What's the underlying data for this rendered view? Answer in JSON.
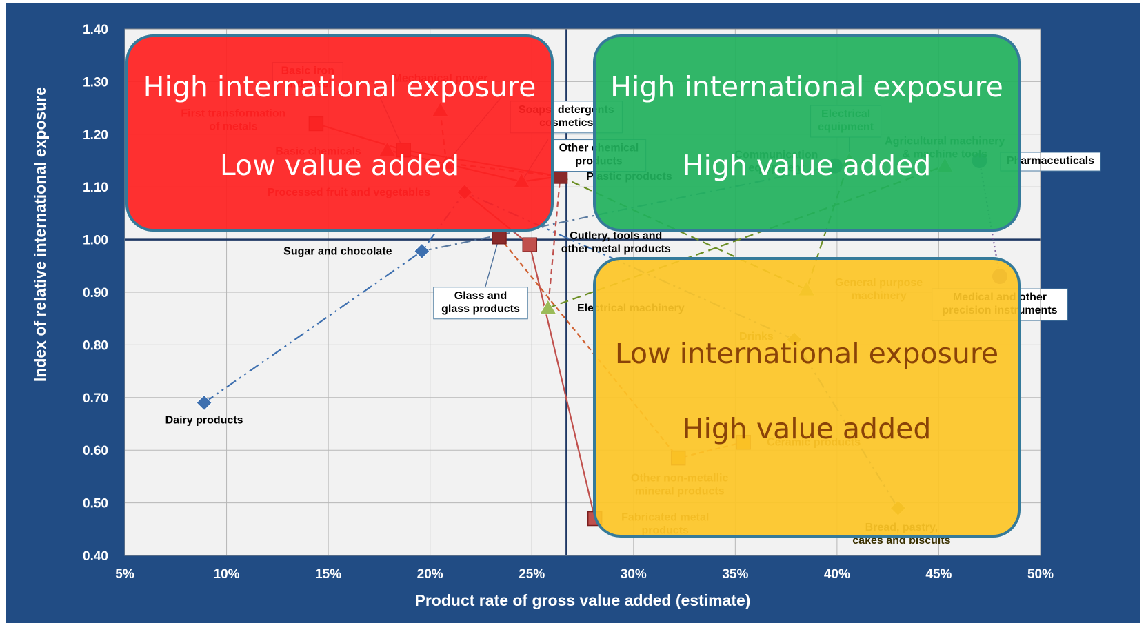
{
  "chart_data": {
    "type": "scatter",
    "xlabel": "Product rate of gross value added (estimate)",
    "ylabel": "Index of relative international exposure",
    "xlim": [
      0.05,
      0.5
    ],
    "ylim": [
      0.4,
      1.4
    ],
    "x_ticks": [
      "5%",
      "10%",
      "15%",
      "20%",
      "25%",
      "30%",
      "35%",
      "40%",
      "45%",
      "50%"
    ],
    "y_ticks": [
      "0.40",
      "0.50",
      "0.60",
      "0.70",
      "0.80",
      "0.90",
      "1.00",
      "1.10",
      "1.20",
      "1.30",
      "1.40"
    ],
    "reference_lines": {
      "x": 0.267,
      "y": 1.0
    },
    "grid": true,
    "points": [
      {
        "label": "Dairy products",
        "x": 0.089,
        "y": 0.69,
        "marker": "diamond",
        "color": "#3d6faf"
      },
      {
        "label": "Sugar and chocolate",
        "x": 0.196,
        "y": 0.978,
        "marker": "diamond",
        "color": "#3d6faf"
      },
      {
        "label": "Processed fruit  and vegetables",
        "x": 0.217,
        "y": 1.09,
        "marker": "diamond",
        "color": "#a6353d"
      },
      {
        "label": "Drinks",
        "x": 0.379,
        "y": 0.81,
        "marker": "diamond",
        "color": "#9a8a2a"
      },
      {
        "label": "Bread, pastry,\ncakes and biscuits",
        "x": 0.43,
        "y": 0.49,
        "marker": "diamond",
        "color": "#9a8a2a"
      },
      {
        "label": "First transformation\nof metals",
        "x": 0.144,
        "y": 1.22,
        "marker": "square",
        "color": "#c0504d"
      },
      {
        "label": "Basic iron\nand steel",
        "x": 0.187,
        "y": 1.17,
        "marker": "square",
        "color": "#c0504d"
      },
      {
        "label": "Glass and\nglass products",
        "x": 0.234,
        "y": 1.005,
        "marker": "square",
        "color": "#8a2a2a"
      },
      {
        "label": "Cutlery, tools and\nother metal products",
        "x": 0.249,
        "y": 0.99,
        "marker": "square",
        "color": "#c0504d"
      },
      {
        "label": "Fabricated metal\nproducts",
        "x": 0.281,
        "y": 0.47,
        "marker": "square",
        "color": "#c0504d"
      },
      {
        "label": "Plastic products",
        "x": 0.264,
        "y": 1.12,
        "marker": "square",
        "color": "#8a2a2a"
      },
      {
        "label": "Other non-metallic\nmineral products",
        "x": 0.322,
        "y": 0.585,
        "marker": "square",
        "color": "#d09020"
      },
      {
        "label": "Ceramic products",
        "x": 0.354,
        "y": 0.615,
        "marker": "square",
        "color": "#d09020"
      },
      {
        "label": "Basic chemicals",
        "x": 0.179,
        "y": 1.17,
        "marker": "triangle",
        "color": "#c0504d"
      },
      {
        "label": "Mechanical power",
        "x": 0.205,
        "y": 1.245,
        "marker": "triangle",
        "color": "#c0504d"
      },
      {
        "label": "Soaps, detergents\ncosmetics",
        "x": 0.208,
        "y": 1.145,
        "marker": "triangle",
        "color": "#c0504d"
      },
      {
        "label": "Other chemical\nproducts",
        "x": 0.245,
        "y": 1.11,
        "marker": "triangle",
        "color": "#c0504d"
      },
      {
        "label": "Electrical machinery",
        "x": 0.258,
        "y": 0.87,
        "marker": "triangle",
        "color": "#9bbb59"
      },
      {
        "label": "General purpose\nmachinery",
        "x": 0.385,
        "y": 0.905,
        "marker": "triangle",
        "color": "#9bbb59"
      },
      {
        "label": "Electrical\nequipment",
        "x": 0.406,
        "y": 1.15,
        "marker": "triangle",
        "color": "#9bbb59"
      },
      {
        "label": "Agricultural machinery\n& machine tools",
        "x": 0.453,
        "y": 1.14,
        "marker": "triangle",
        "color": "#9bbb59"
      },
      {
        "label": "Communication\nequipment",
        "x": 0.399,
        "y": 1.14,
        "marker": "circle",
        "color": "#4a6e9a"
      },
      {
        "label": "Pharmaceuticals",
        "x": 0.47,
        "y": 1.15,
        "marker": "circle",
        "color": "#4a6e9a"
      },
      {
        "label": "Medical and other\nprecision instruments",
        "x": 0.48,
        "y": 0.93,
        "marker": "circle",
        "color": "#8064a2"
      }
    ],
    "quadrants": [
      {
        "id": "top-left",
        "line1": "High international exposure",
        "line2": "Low value added",
        "color": "#ff2020"
      },
      {
        "id": "top-right",
        "line1": "High international exposure",
        "line2": "High value added",
        "color": "#21b15c"
      },
      {
        "id": "bottom-right",
        "line1": "Low international exposure",
        "line2": "High value added",
        "color": "#fdc526"
      }
    ]
  }
}
